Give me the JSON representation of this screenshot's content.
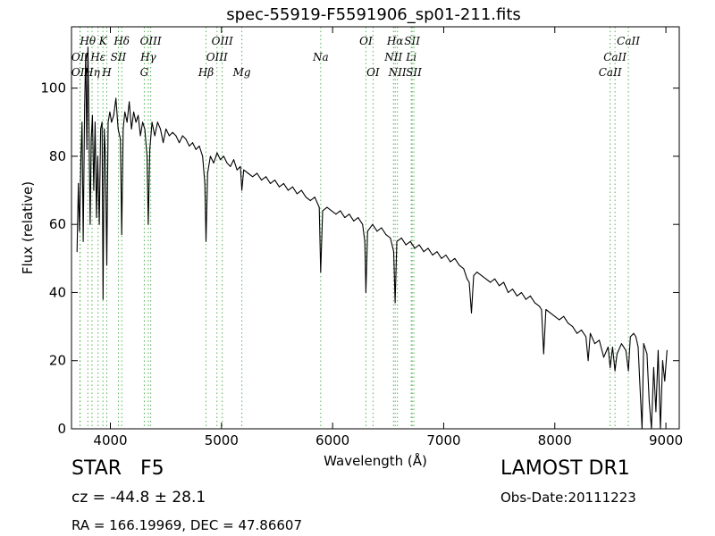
{
  "chart_data": {
    "type": "line",
    "title": "spec-55919-F5591906_sp01-211.fits",
    "xlabel": "Wavelength (Å)",
    "ylabel": "Flux (relative)",
    "xlim": [
      3650,
      9120
    ],
    "ylim": [
      0,
      118
    ],
    "x_ticks": [
      4000,
      5000,
      6000,
      7000,
      8000,
      9000
    ],
    "y_ticks": [
      0,
      20,
      40,
      60,
      80,
      100
    ],
    "grid": false,
    "line_color": "#000000",
    "marker_color": "#2ca02c",
    "series": [
      {
        "values": [
          [
            3700,
            52
          ],
          [
            3712,
            72
          ],
          [
            3722,
            58
          ],
          [
            3735,
            80
          ],
          [
            3745,
            90
          ],
          [
            3755,
            55
          ],
          [
            3768,
            95
          ],
          [
            3778,
            110
          ],
          [
            3788,
            82
          ],
          [
            3798,
            112
          ],
          [
            3808,
            88
          ],
          [
            3818,
            60
          ],
          [
            3828,
            85
          ],
          [
            3838,
            92
          ],
          [
            3850,
            70
          ],
          [
            3862,
            90
          ],
          [
            3875,
            62
          ],
          [
            3886,
            80
          ],
          [
            3900,
            60
          ],
          [
            3912,
            88
          ],
          [
            3925,
            90
          ],
          [
            3934,
            38
          ],
          [
            3945,
            88
          ],
          [
            3955,
            80
          ],
          [
            3968,
            48
          ],
          [
            3980,
            90
          ],
          [
            3995,
            93
          ],
          [
            4010,
            90
          ],
          [
            4030,
            92
          ],
          [
            4050,
            97
          ],
          [
            4070,
            88
          ],
          [
            4090,
            85
          ],
          [
            4102,
            57
          ],
          [
            4115,
            88
          ],
          [
            4130,
            93
          ],
          [
            4150,
            90
          ],
          [
            4170,
            96
          ],
          [
            4190,
            88
          ],
          [
            4210,
            93
          ],
          [
            4230,
            90
          ],
          [
            4250,
            92
          ],
          [
            4270,
            86
          ],
          [
            4290,
            90
          ],
          [
            4310,
            88
          ],
          [
            4330,
            80
          ],
          [
            4341,
            60
          ],
          [
            4355,
            82
          ],
          [
            4375,
            90
          ],
          [
            4400,
            86
          ],
          [
            4425,
            90
          ],
          [
            4450,
            88
          ],
          [
            4475,
            84
          ],
          [
            4500,
            88
          ],
          [
            4530,
            86
          ],
          [
            4560,
            87
          ],
          [
            4590,
            86
          ],
          [
            4620,
            84
          ],
          [
            4650,
            86
          ],
          [
            4680,
            85
          ],
          [
            4710,
            83
          ],
          [
            4740,
            84
          ],
          [
            4770,
            82
          ],
          [
            4800,
            83
          ],
          [
            4830,
            80
          ],
          [
            4850,
            72
          ],
          [
            4861,
            55
          ],
          [
            4875,
            75
          ],
          [
            4900,
            80
          ],
          [
            4930,
            78
          ],
          [
            4960,
            81
          ],
          [
            4990,
            79
          ],
          [
            5020,
            80
          ],
          [
            5050,
            78
          ],
          [
            5080,
            77
          ],
          [
            5110,
            79
          ],
          [
            5140,
            76
          ],
          [
            5170,
            77
          ],
          [
            5183,
            70
          ],
          [
            5200,
            76
          ],
          [
            5240,
            75
          ],
          [
            5280,
            74
          ],
          [
            5320,
            75
          ],
          [
            5360,
            73
          ],
          [
            5400,
            74
          ],
          [
            5440,
            72
          ],
          [
            5480,
            73
          ],
          [
            5520,
            71
          ],
          [
            5560,
            72
          ],
          [
            5600,
            70
          ],
          [
            5640,
            71
          ],
          [
            5680,
            69
          ],
          [
            5720,
            70
          ],
          [
            5760,
            68
          ],
          [
            5800,
            67
          ],
          [
            5840,
            68
          ],
          [
            5880,
            65
          ],
          [
            5893,
            46
          ],
          [
            5910,
            64
          ],
          [
            5950,
            65
          ],
          [
            5990,
            64
          ],
          [
            6030,
            63
          ],
          [
            6070,
            64
          ],
          [
            6110,
            62
          ],
          [
            6150,
            63
          ],
          [
            6190,
            61
          ],
          [
            6230,
            62
          ],
          [
            6270,
            60
          ],
          [
            6290,
            55
          ],
          [
            6300,
            40
          ],
          [
            6315,
            58
          ],
          [
            6360,
            60
          ],
          [
            6400,
            58
          ],
          [
            6440,
            59
          ],
          [
            6480,
            57
          ],
          [
            6520,
            56
          ],
          [
            6550,
            52
          ],
          [
            6563,
            37
          ],
          [
            6578,
            55
          ],
          [
            6620,
            56
          ],
          [
            6660,
            54
          ],
          [
            6700,
            55
          ],
          [
            6740,
            53
          ],
          [
            6780,
            54
          ],
          [
            6820,
            52
          ],
          [
            6860,
            53
          ],
          [
            6900,
            51
          ],
          [
            6940,
            52
          ],
          [
            6980,
            50
          ],
          [
            7020,
            51
          ],
          [
            7060,
            49
          ],
          [
            7100,
            50
          ],
          [
            7140,
            48
          ],
          [
            7180,
            47
          ],
          [
            7210,
            44
          ],
          [
            7230,
            43
          ],
          [
            7250,
            34
          ],
          [
            7270,
            45
          ],
          [
            7300,
            46
          ],
          [
            7340,
            45
          ],
          [
            7380,
            44
          ],
          [
            7420,
            43
          ],
          [
            7460,
            44
          ],
          [
            7500,
            42
          ],
          [
            7540,
            43
          ],
          [
            7580,
            40
          ],
          [
            7620,
            41
          ],
          [
            7660,
            39
          ],
          [
            7700,
            40
          ],
          [
            7740,
            38
          ],
          [
            7780,
            39
          ],
          [
            7820,
            37
          ],
          [
            7860,
            36
          ],
          [
            7880,
            35
          ],
          [
            7900,
            22
          ],
          [
            7920,
            35
          ],
          [
            7960,
            34
          ],
          [
            8000,
            33
          ],
          [
            8040,
            32
          ],
          [
            8080,
            33
          ],
          [
            8120,
            31
          ],
          [
            8160,
            30
          ],
          [
            8200,
            28
          ],
          [
            8240,
            29
          ],
          [
            8280,
            27
          ],
          [
            8300,
            20
          ],
          [
            8320,
            28
          ],
          [
            8360,
            25
          ],
          [
            8400,
            26
          ],
          [
            8440,
            21
          ],
          [
            8480,
            24
          ],
          [
            8498,
            18
          ],
          [
            8520,
            24
          ],
          [
            8542,
            17
          ],
          [
            8560,
            22
          ],
          [
            8600,
            25
          ],
          [
            8640,
            23
          ],
          [
            8662,
            17
          ],
          [
            8680,
            27
          ],
          [
            8710,
            28
          ],
          [
            8730,
            27
          ],
          [
            8750,
            24
          ],
          [
            8770,
            10
          ],
          [
            8785,
            0
          ],
          [
            8800,
            25
          ],
          [
            8830,
            22
          ],
          [
            8850,
            8
          ],
          [
            8870,
            0
          ],
          [
            8890,
            18
          ],
          [
            8910,
            5
          ],
          [
            8930,
            23
          ],
          [
            8950,
            0
          ],
          [
            8970,
            20
          ],
          [
            8990,
            14
          ],
          [
            9010,
            23
          ]
        ]
      }
    ],
    "spectral_lines": [
      {
        "label": "Hθ",
        "x": 3797,
        "row": 1
      },
      {
        "label": "K",
        "x": 3933,
        "row": 1
      },
      {
        "label": "Hδ",
        "x": 4102,
        "row": 1
      },
      {
        "label": "OIII",
        "x": 4363,
        "row": 1
      },
      {
        "label": "OIII",
        "x": 5007,
        "row": 1
      },
      {
        "label": "OI",
        "x": 6300,
        "row": 1
      },
      {
        "label": "Hα",
        "x": 6563,
        "row": 1
      },
      {
        "label": "SII",
        "x": 6716,
        "row": 1
      },
      {
        "label": "CaII",
        "x": 8662,
        "row": 1
      },
      {
        "label": "OII",
        "x": 3727,
        "row": 2
      },
      {
        "label": "Hε",
        "x": 3889,
        "row": 2
      },
      {
        "label": "SII",
        "x": 4072,
        "row": 2
      },
      {
        "label": "Hγ",
        "x": 4341,
        "row": 2
      },
      {
        "label": "OIII",
        "x": 4959,
        "row": 2
      },
      {
        "label": "Na",
        "x": 5893,
        "row": 2
      },
      {
        "label": "NII",
        "x": 6548,
        "row": 2
      },
      {
        "label": "Li",
        "x": 6708,
        "row": 2
      },
      {
        "label": "CaII",
        "x": 8542,
        "row": 2
      },
      {
        "label": "OII",
        "x": 3727,
        "row": 3
      },
      {
        "label": "Hη",
        "x": 3835,
        "row": 3
      },
      {
        "label": "H",
        "x": 3968,
        "row": 3
      },
      {
        "label": "G",
        "x": 4305,
        "row": 3
      },
      {
        "label": "Hβ",
        "x": 4861,
        "row": 3
      },
      {
        "label": "Mg",
        "x": 5183,
        "row": 3
      },
      {
        "label": "OI",
        "x": 6364,
        "row": 3
      },
      {
        "label": "NII",
        "x": 6583,
        "row": 3
      },
      {
        "label": "SII",
        "x": 6731,
        "row": 3
      },
      {
        "label": "CaII",
        "x": 8498,
        "row": 3
      }
    ]
  },
  "info": {
    "object_class": "STAR",
    "subclass": "F5",
    "cz_text": "cz = -44.8 ± 28.1",
    "radec_text": "RA = 166.19969, DEC = 47.86607",
    "survey": "LAMOST DR1",
    "obs_date": "Obs-Date:20111223"
  }
}
